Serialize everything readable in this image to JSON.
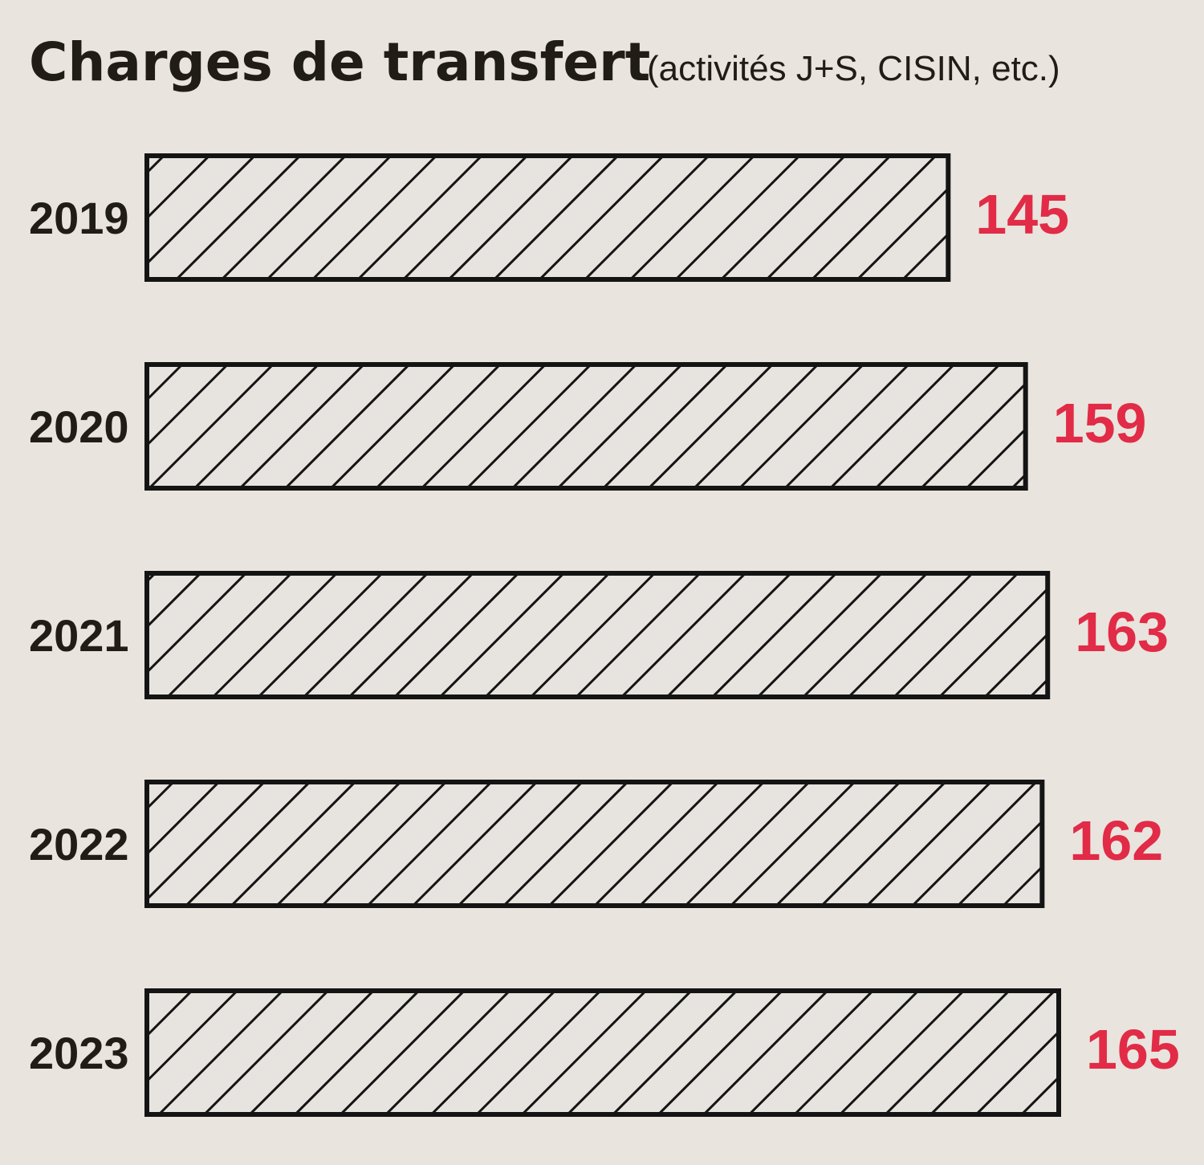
{
  "chart_data": {
    "type": "bar",
    "orientation": "horizontal",
    "title": "Charges de transfert",
    "subtitle": "(activités J+S, CISIN, etc.)",
    "categories": [
      "2019",
      "2020",
      "2021",
      "2022",
      "2023"
    ],
    "values": [
      145,
      159,
      163,
      162,
      165
    ],
    "xlim": [
      0,
      165
    ],
    "grid": false,
    "legend": "none",
    "colors": {
      "background": "#e9e4de",
      "bar_fill": "#e7e3de",
      "bar_stroke": "#141414",
      "hatch": "#141414",
      "value_label": "#e12b47",
      "text": "#1f1d16"
    }
  }
}
